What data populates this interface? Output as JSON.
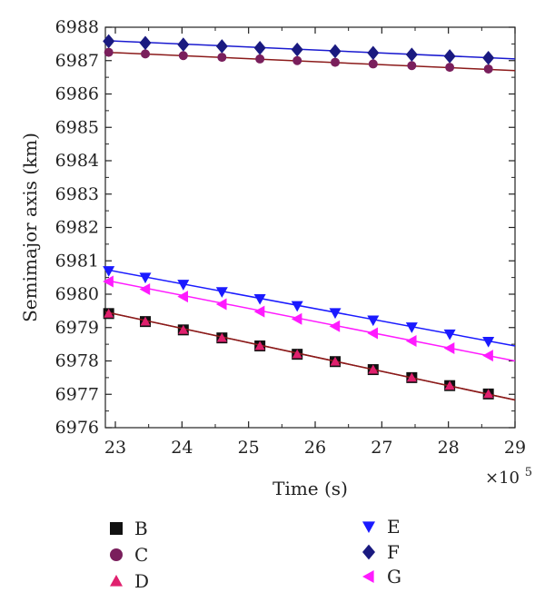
{
  "chart_data": {
    "type": "line",
    "title": "",
    "xlabel": "Time (s)",
    "ylabel": "Semimajor axis (km)",
    "x_multiplier": {
      "base": "×10",
      "exponent": "5"
    },
    "xlim": [
      22.85,
      29
    ],
    "ylim": [
      6976,
      6988
    ],
    "x_ticks": [
      23,
      24,
      25,
      26,
      27,
      28,
      29
    ],
    "y_ticks": [
      6976,
      6977,
      6978,
      6979,
      6980,
      6981,
      6982,
      6983,
      6984,
      6985,
      6986,
      6987,
      6988
    ],
    "x": [
      22.9,
      23.45,
      24.02,
      24.6,
      25.17,
      25.73,
      26.3,
      26.87,
      27.45,
      28.02,
      28.6
    ],
    "series": [
      {
        "name": "B",
        "marker": "square",
        "color": "#111111",
        "line_color": "#8b1a1a",
        "values": [
          6979.42,
          6979.18,
          6978.93,
          6978.69,
          6978.45,
          6978.2,
          6977.98,
          6977.74,
          6977.5,
          6977.26,
          6977.01
        ],
        "fit": [
          [
            22.85,
            6979.47
          ],
          [
            29,
            6976.83
          ]
        ]
      },
      {
        "name": "C",
        "marker": "circle",
        "color": "#7a1f5c",
        "line_color": "#8b1a1a",
        "values": [
          6987.25,
          6987.2,
          6987.15,
          6987.1,
          6987.05,
          6987.0,
          6986.95,
          6986.9,
          6986.85,
          6986.8,
          6986.75
        ],
        "fit": [
          [
            22.85,
            6987.25
          ],
          [
            29,
            6986.7
          ]
        ]
      },
      {
        "name": "D",
        "marker": "triangle-up",
        "color": "#e0206e",
        "line_color": "#8b1a1a",
        "values": [
          6979.42,
          6979.18,
          6978.93,
          6978.69,
          6978.45,
          6978.2,
          6977.98,
          6977.74,
          6977.5,
          6977.26,
          6977.01
        ],
        "fit": [
          [
            22.85,
            6979.47
          ],
          [
            29,
            6976.83
          ]
        ]
      },
      {
        "name": "E",
        "marker": "triangle-down",
        "color": "#1a1aff",
        "line_color": "#1a1aff",
        "values": [
          6980.7,
          6980.5,
          6980.29,
          6980.07,
          6979.86,
          6979.65,
          6979.44,
          6979.22,
          6979.01,
          6978.8,
          6978.58
        ],
        "fit": [
          [
            22.85,
            6980.74
          ],
          [
            29,
            6978.45
          ]
        ]
      },
      {
        "name": "F",
        "marker": "diamond",
        "color": "#1a1a80",
        "line_color": "#1a1ad0",
        "values": [
          6987.58,
          6987.53,
          6987.48,
          6987.43,
          6987.38,
          6987.33,
          6987.28,
          6987.23,
          6987.18,
          6987.13,
          6987.08
        ],
        "fit": [
          [
            22.85,
            6987.6
          ],
          [
            29,
            6987.05
          ]
        ]
      },
      {
        "name": "G",
        "marker": "triangle-left",
        "color": "#ff1aff",
        "line_color": "#ff1aff",
        "values": [
          6980.38,
          6980.15,
          6979.93,
          6979.7,
          6979.48,
          6979.26,
          6979.04,
          6978.83,
          6978.6,
          6978.38,
          6978.16
        ],
        "fit": [
          [
            22.85,
            6980.42
          ],
          [
            29,
            6978.0
          ]
        ]
      }
    ],
    "legend": {
      "placement": "bottom",
      "columns": [
        [
          "B",
          "C",
          "D"
        ],
        [
          "E",
          "F",
          "G"
        ]
      ]
    },
    "grid": false
  }
}
